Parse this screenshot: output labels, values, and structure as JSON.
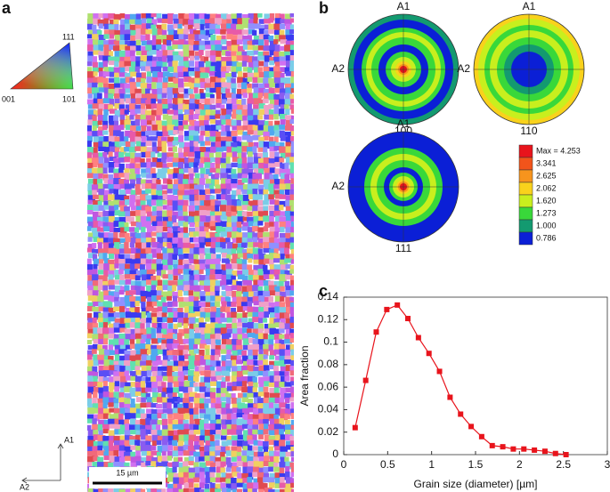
{
  "panel_labels": [
    "a",
    "b",
    "c"
  ],
  "ipf_key": {
    "labels": [
      "111",
      "001",
      "101"
    ]
  },
  "sample_axes": [
    "A1",
    "A2"
  ],
  "scale_bar": "15 µm",
  "pole_figures": [
    {
      "label": "100"
    },
    {
      "label": "110"
    },
    {
      "label": "111"
    }
  ],
  "pole_axes": [
    "A1",
    "A2"
  ],
  "contour_legend": {
    "labels": [
      "Max = 4.253",
      "3.341",
      "2.625",
      "2.062",
      "1.620",
      "1.273",
      "1.000",
      "0.786"
    ],
    "colors": [
      "#e8141c",
      "#f2541b",
      "#f7941d",
      "#f9d21c",
      "#c8ef1e",
      "#39d83a",
      "#139a70",
      "#0b1fd6"
    ]
  },
  "chart_data": {
    "type": "line",
    "xlabel": "Grain size (diameter) [µm]",
    "ylabel": "Area fraction",
    "x": [
      0.13,
      0.25,
      0.37,
      0.49,
      0.61,
      0.73,
      0.85,
      0.97,
      1.09,
      1.21,
      1.33,
      1.45,
      1.57,
      1.69,
      1.81,
      1.93,
      2.05,
      2.17,
      2.29,
      2.41,
      2.53
    ],
    "values": [
      0.024,
      0.066,
      0.109,
      0.129,
      0.133,
      0.121,
      0.104,
      0.09,
      0.074,
      0.051,
      0.036,
      0.025,
      0.016,
      0.008,
      0.007,
      0.005,
      0.005,
      0.004,
      0.003,
      0.001,
      0.0
    ],
    "color": "#e8141c",
    "xlim": [
      0,
      3
    ],
    "xticks": [
      0,
      0.5,
      1,
      1.5,
      2,
      2.5,
      3
    ],
    "ylim": [
      0,
      0.14
    ],
    "yticks": [
      0,
      0.02,
      0.04,
      0.06,
      0.08,
      0.1,
      0.12,
      0.14
    ]
  }
}
